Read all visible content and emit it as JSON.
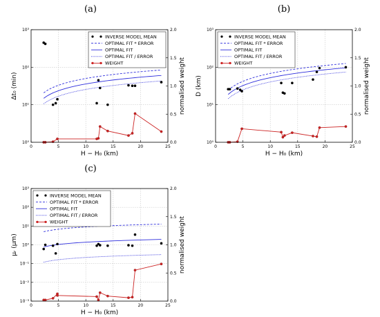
{
  "chart_data": [
    {
      "type": "scatter",
      "panel_label": "(a)",
      "xlabel": "H − H₀ (km)",
      "ylabel": "Δt₀ (min)",
      "ylabel_right": "normalised weight",
      "x_ticks": [
        "0",
        "5",
        "10",
        "15",
        "20",
        "25"
      ],
      "xlim": [
        0,
        25
      ],
      "y_scale": "log",
      "ylim": [
        1,
        1000
      ],
      "y_ticks": [
        "10⁰",
        "10¹",
        "10²",
        "10³"
      ],
      "y2lim": [
        0,
        2.0
      ],
      "y2_ticks": [
        "0.0",
        "0.5",
        "1.0",
        "1.5",
        "2.0"
      ],
      "grid": true,
      "legend_position": "top-right",
      "legend": [
        "INVERSE MODEL MEAN",
        "OPTIMAL FIT * ERROR",
        "OPTIMAL FIT",
        "OPTIMAL FIT / ERROR",
        "WEIGHT"
      ],
      "fit_params": {
        "a": 9.0,
        "b": 0.6,
        "err": 1.4
      },
      "series": [
        {
          "name": "INVERSE MODEL MEAN",
          "kind": "points",
          "x": [
            2.3,
            2.6,
            4.0,
            4.5,
            4.8,
            12.0,
            12.3,
            12.6,
            14.0,
            17.8,
            18.5,
            19.0,
            23.8
          ],
          "y": [
            450,
            420,
            10,
            11,
            14,
            11,
            45,
            28,
            10,
            33,
            32,
            32,
            40
          ]
        },
        {
          "name": "WEIGHT",
          "kind": "weight",
          "x": [
            2.3,
            2.6,
            4.0,
            4.8,
            12.0,
            12.3,
            12.6,
            14.0,
            17.8,
            18.5,
            19.0,
            23.8
          ],
          "y": [
            0.0,
            0.0,
            0.01,
            0.06,
            0.06,
            0.07,
            0.28,
            0.2,
            0.12,
            0.16,
            0.51,
            0.19
          ]
        }
      ]
    },
    {
      "type": "scatter",
      "panel_label": "(b)",
      "xlabel": "H − H₀ (km)",
      "ylabel": "D (km)",
      "ylabel_right": "normalised weight",
      "x_ticks": [
        "0",
        "5",
        "10",
        "15",
        "20",
        "25"
      ],
      "xlim": [
        0,
        25
      ],
      "y_scale": "log",
      "ylim": [
        1,
        1000
      ],
      "y_ticks": [
        "10⁰",
        "10¹",
        "10²",
        "10³"
      ],
      "y2lim": [
        0,
        2.0
      ],
      "y2_ticks": [
        "0.0",
        "0.5",
        "1.0",
        "1.5",
        "2.0"
      ],
      "grid": true,
      "legend_position": "top-right",
      "legend": [
        "INVERSE MODEL MEAN",
        "OPTIMAL FIT * ERROR",
        "OPTIMAL FIT",
        "OPTIMAL FIT / ERROR",
        "WEIGHT"
      ],
      "fit_params": {
        "a": 10.5,
        "b": 0.7,
        "err": 1.3
      },
      "series": [
        {
          "name": "INVERSE MODEL MEAN",
          "kind": "points",
          "x": [
            2.3,
            2.6,
            4.0,
            4.5,
            4.8,
            12.0,
            12.3,
            12.6,
            14.0,
            17.8,
            18.5,
            19.0,
            23.8
          ],
          "y": [
            26,
            26,
            27,
            25,
            23,
            38,
            21,
            20,
            38,
            47,
            75,
            95,
            100
          ]
        },
        {
          "name": "WEIGHT",
          "kind": "weight",
          "x": [
            2.3,
            2.6,
            4.0,
            4.8,
            12.0,
            12.3,
            12.6,
            14.0,
            17.8,
            18.5,
            19.0,
            23.8
          ],
          "y": [
            0.0,
            0.0,
            0.01,
            0.24,
            0.18,
            0.09,
            0.12,
            0.17,
            0.11,
            0.1,
            0.26,
            0.28
          ]
        }
      ]
    },
    {
      "type": "scatter",
      "panel_label": "(c)",
      "xlabel": "H − H₀ (km)",
      "ylabel": "μᵣ (μm)",
      "ylabel_right": "normalised weight",
      "x_ticks": [
        "0",
        "5",
        "10",
        "15",
        "20",
        "25"
      ],
      "xlim": [
        0,
        25
      ],
      "y_scale": "log",
      "ylim": [
        0.001,
        1000
      ],
      "y_ticks": [
        "10⁻³",
        "10⁻²",
        "10⁻¹",
        "10⁰",
        "10¹",
        "10²",
        "10³"
      ],
      "y2lim": [
        0,
        2.0
      ],
      "y2_ticks": [
        "0.0",
        "0.5",
        "1.0",
        "1.5",
        "2.0"
      ],
      "grid": true,
      "legend_position": "top-left",
      "legend": [
        "INVERSE MODEL MEAN",
        "OPTIMAL FIT * ERROR",
        "OPTIMAL FIT",
        "OPTIMAL FIT / ERROR",
        "WEIGHT"
      ],
      "fit_params": {
        "a": 0.55,
        "b": 0.4,
        "err": 6.5
      },
      "series": [
        {
          "name": "INVERSE MODEL MEAN",
          "kind": "points",
          "x": [
            2.3,
            2.6,
            4.0,
            4.5,
            4.8,
            12.0,
            12.3,
            12.6,
            14.0,
            17.8,
            18.5,
            19.0,
            23.8
          ],
          "y": [
            0.6,
            1.0,
            0.9,
            0.35,
            1.1,
            0.9,
            1.1,
            0.95,
            0.9,
            0.95,
            0.9,
            3.5,
            1.2
          ]
        },
        {
          "name": "WEIGHT",
          "kind": "weight",
          "x": [
            2.3,
            2.6,
            4.0,
            4.8,
            4.8,
            12.0,
            12.3,
            12.6,
            14.0,
            17.8,
            18.5,
            19.0,
            23.8
          ],
          "y": [
            0.02,
            0.02,
            0.05,
            0.13,
            0.1,
            0.08,
            0.02,
            0.15,
            0.09,
            0.06,
            0.07,
            0.55,
            0.66
          ]
        }
      ]
    }
  ],
  "colors": {
    "points": "#000000",
    "fit": "#2c2cdc",
    "weight": "#cc2222",
    "grid": "#c8c8c8"
  }
}
